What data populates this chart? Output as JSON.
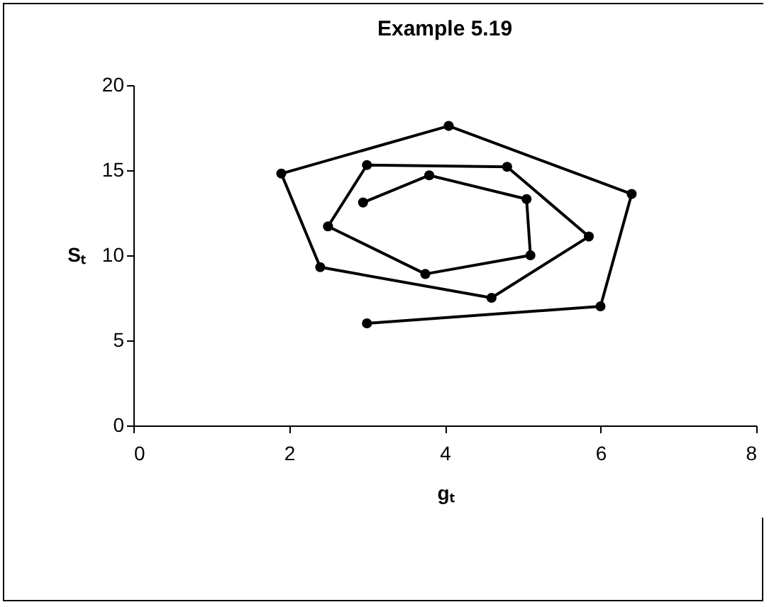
{
  "chart_data": {
    "type": "line",
    "title": "Example 5.19",
    "xlabel": "gₜ",
    "ylabel": "Sₜ",
    "x": [
      3.0,
      6.0,
      6.4,
      4.05,
      1.9,
      2.4,
      4.6,
      5.85,
      4.8,
      3.0,
      2.5,
      3.75,
      5.1,
      5.05,
      3.8,
      2.95
    ],
    "values": [
      6.0,
      7.0,
      13.6,
      17.6,
      14.8,
      9.3,
      7.5,
      11.1,
      15.2,
      15.3,
      11.7,
      8.9,
      10.0,
      13.3,
      14.7,
      13.1
    ],
    "color": "#000000",
    "marker": "circle",
    "line_style": "solid",
    "grid": false,
    "legend": false,
    "xlim": [
      0,
      8
    ],
    "xticks": [
      0,
      2,
      4,
      6,
      8
    ],
    "ylim": [
      0,
      20
    ],
    "yticks": [
      0,
      5,
      10,
      15,
      20
    ]
  }
}
